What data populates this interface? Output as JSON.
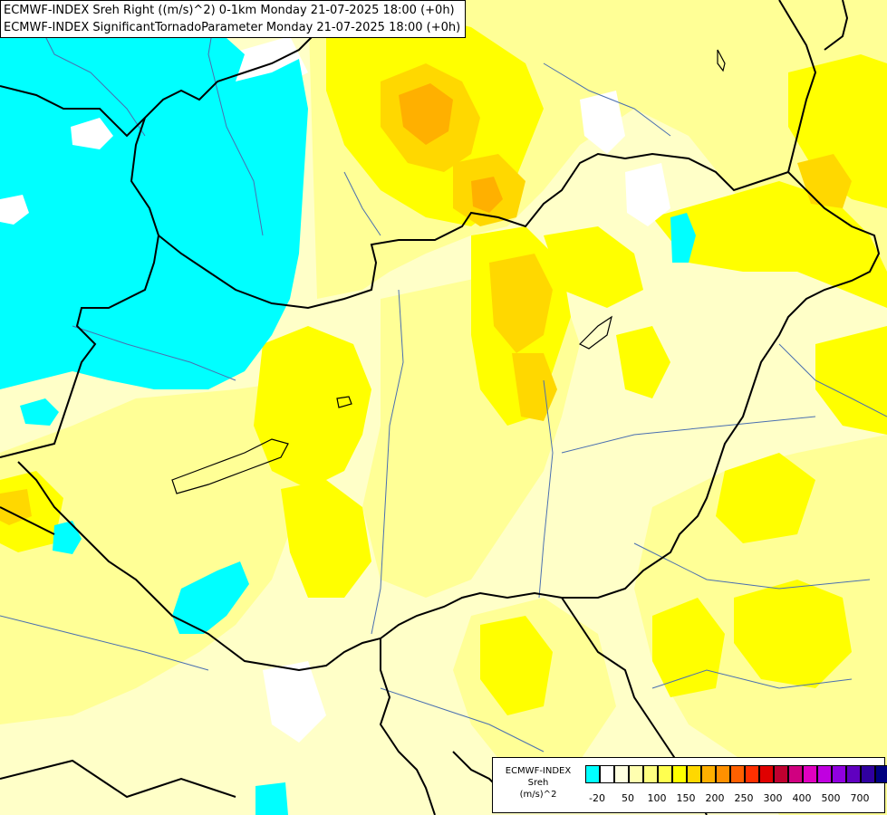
{
  "header": {
    "line1": "ECMWF-INDEX Sreh Right ((m/s)^2) 0-1km Monday 21-07-2025 18:00 (+0h)",
    "line2": "ECMWF-INDEX SignificantTornadoParameter Monday 21-07-2025 18:00 (+0h)"
  },
  "legend": {
    "label_model": "ECMWF-INDEX",
    "label_param": "Sreh",
    "label_unit": "(m/s)^2",
    "swatch_colors": [
      "#00ffff",
      "#ffffff",
      "#ffffe0",
      "#ffffb0",
      "#ffff80",
      "#ffff50",
      "#ffff00",
      "#ffd800",
      "#ffb000",
      "#ff9000",
      "#ff6000",
      "#ff3000",
      "#e00000",
      "#c00030",
      "#d00080",
      "#e000c0",
      "#c000e0",
      "#9000e0",
      "#6000c0",
      "#3000a0",
      "#000080"
    ],
    "ticks": [
      "-20",
      "50",
      "100",
      "150",
      "200",
      "250",
      "300",
      "400",
      "500",
      "700"
    ]
  },
  "map": {
    "colors": {
      "cyan": "#00ffff",
      "pale_yellow": "#ffffc8",
      "light_yellow": "#ffff96",
      "yellow": "#ffff00",
      "gold": "#ffd700",
      "orange": "#ffb000",
      "white": "#ffffff",
      "border": "#000000",
      "river": "#4a6fb0"
    }
  }
}
